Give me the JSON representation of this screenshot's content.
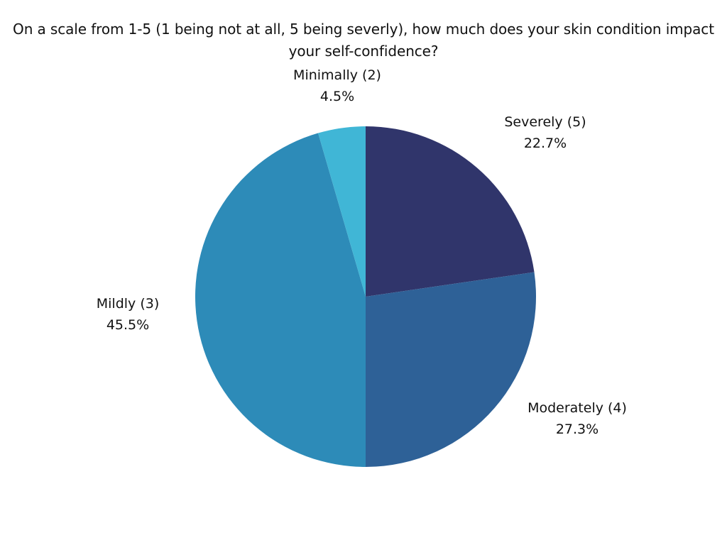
{
  "chart_data": {
    "type": "pie",
    "title": "On a scale from 1-5 (1 being not at all, 5 being severly), how much does your skin condition impact your self-confidence?",
    "categories": [
      "Severely (5)",
      "Moderately (4)",
      "Mildly (3)",
      "Minimally (2)"
    ],
    "values": [
      22.7,
      27.3,
      45.5,
      4.5
    ],
    "value_labels": [
      "22.7%",
      "27.3%",
      "45.5%",
      "4.5%"
    ],
    "colors": [
      "#30356b",
      "#2e6197",
      "#2d8bb8",
      "#40b6d6"
    ],
    "start_angle": "12 o'clock",
    "direction": "clockwise",
    "legend": "none (labels outside slices)"
  }
}
